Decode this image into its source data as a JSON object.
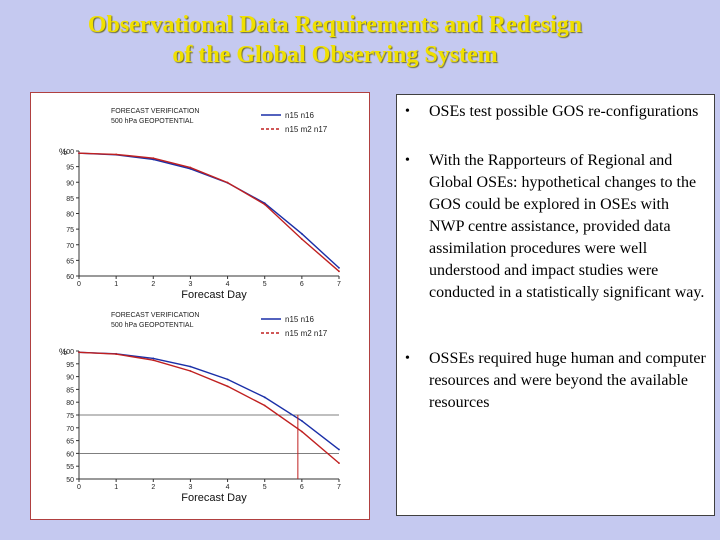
{
  "slide": {
    "title_line1": "Observational Data Requirements and Redesign",
    "title_line2": "of the Global Observing System"
  },
  "bullets": [
    {
      "text": "OSEs test possible GOS re-configurations"
    },
    {
      "text": "With the Rapporteurs of Regional and Global OSEs: hypothetical changes to the GOS could be explored in OSEs with NWP centre assistance, provided data assimilation procedures were well understood and impact studies were conducted in a statistically significant way."
    },
    {
      "text": "OSSEs required huge human and computer resources and were beyond the available resources"
    }
  ],
  "colors": {
    "background": "#c5c9f0",
    "title": "#f0e000",
    "series_blue": "#1a2fa8",
    "series_red": "#c02020"
  },
  "chart_data": [
    {
      "type": "line",
      "title": "FORECAST VERIFICATION",
      "subtitle": "500 hPa GEOPOTENTIAL",
      "ylabel": "%",
      "xlabel": "Forecast Day",
      "x": [
        0,
        1,
        2,
        3,
        4,
        5,
        6,
        7
      ],
      "xticks": [
        "0",
        "1",
        "2",
        "3",
        "4",
        "5",
        "6",
        "7"
      ],
      "yticks": [
        "60",
        "65",
        "70",
        "75",
        "80",
        "85",
        "90",
        "95",
        "100"
      ],
      "ylim": [
        60,
        100
      ],
      "series": [
        {
          "name": "n15 n16",
          "color": "#1a2fa8",
          "values": [
            99.3,
            98.8,
            97.3,
            94.3,
            89.8,
            83.3,
            73.5,
            62.6
          ]
        },
        {
          "name": "n15 m2 n17",
          "color": "#c02020",
          "values": [
            99.3,
            98.9,
            97.7,
            94.7,
            89.9,
            82.9,
            71.8,
            61.5
          ]
        }
      ],
      "grid": false,
      "legend": "top-right"
    },
    {
      "type": "line",
      "title": "FORECAST VERIFICATION",
      "subtitle": "500 hPa GEOPOTENTIAL",
      "ylabel": "%",
      "xlabel": "Forecast Day",
      "x": [
        0,
        1,
        2,
        3,
        4,
        5,
        6,
        7
      ],
      "xticks": [
        "0",
        "1",
        "2",
        "3",
        "4",
        "5",
        "6",
        "7"
      ],
      "yticks": [
        "50",
        "55",
        "60",
        "65",
        "70",
        "75",
        "80",
        "85",
        "90",
        "95",
        "100"
      ],
      "ylim": [
        50,
        100
      ],
      "series": [
        {
          "name": "n15 n16",
          "color": "#1a2fa8",
          "values": [
            99.5,
            98.9,
            97.1,
            93.9,
            88.9,
            81.9,
            72.7,
            61.5
          ]
        },
        {
          "name": "n15 m2 n17",
          "color": "#c02020",
          "values": [
            99.5,
            98.8,
            96.4,
            92.2,
            86.2,
            78.7,
            68.5,
            56.2
          ]
        }
      ],
      "reference_lines": [
        75,
        60
      ],
      "grid": false,
      "legend": "top-right"
    }
  ]
}
